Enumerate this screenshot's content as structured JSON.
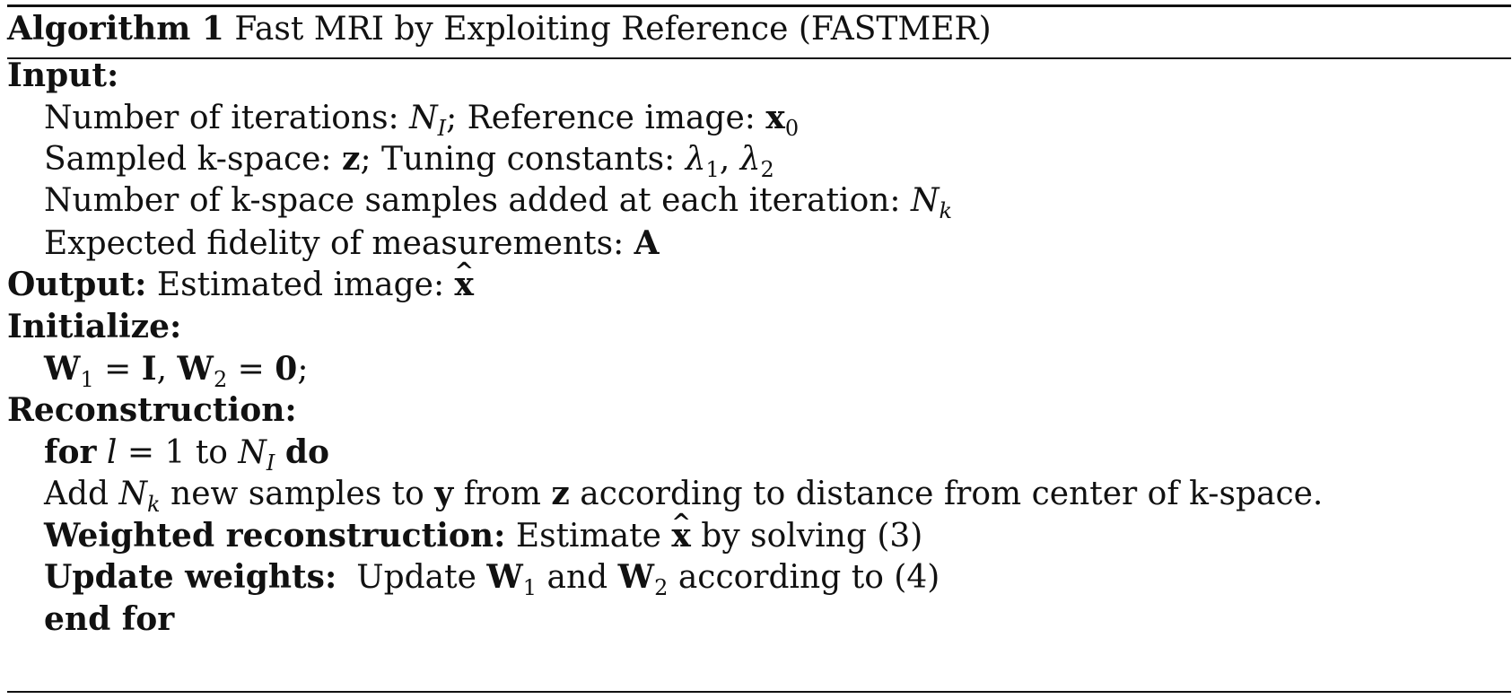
{
  "title": {
    "label": "Algorithm 1",
    "name": "Fast MRI by Exploiting Reference (FASTMER)"
  },
  "input": {
    "heading": "Input:",
    "line1": {
      "iterations_label": "Number of iterations: ",
      "iterations_symbol": "N",
      "iterations_sub": "I",
      "separator": "; ",
      "reference_label": "Reference image: ",
      "reference_symbol": "x",
      "reference_sub": "0"
    },
    "line2": {
      "sampled_label": "Sampled k-space: ",
      "sampled_symbol": "z",
      "separator": "; ",
      "tuning_label": "Tuning constants: ",
      "lambda_symbol": "λ",
      "lambda1_sub": "1",
      "comma": ", ",
      "lambda2_sub": "2"
    },
    "line3": {
      "label": "Number of k-space samples added at each iteration: ",
      "symbol": "N",
      "sub": "k"
    },
    "line4": {
      "label": "Expected fidelity of measurements: ",
      "symbol": "A"
    }
  },
  "output": {
    "heading": "Output:",
    "label": "Estimated image: ",
    "symbol": "x",
    "hat": "^"
  },
  "initialize": {
    "heading": "Initialize:",
    "w": "W",
    "w1_sub": "1",
    "eq1": " = ",
    "identity": "I",
    "comma": ", ",
    "w2_sub": "2",
    "eq2": " = ",
    "zero": "0",
    "semicolon": ";"
  },
  "reconstruction": {
    "heading": "Reconstruction:",
    "for_keyword": "for",
    "loop_var": "l",
    "loop_eq": " = 1 to ",
    "loop_bound_symbol": "N",
    "loop_bound_sub": "I",
    "do_keyword": "do",
    "add": {
      "prefix": "Add ",
      "symbol": "N",
      "sub": "k",
      "middle": " new samples to ",
      "y_symbol": "y",
      "from": " from ",
      "z_symbol": "z",
      "suffix": " according to distance from center of k-space."
    },
    "weighted": {
      "label": "Weighted reconstruction:",
      "prefix": "Estimate ",
      "symbol": "x",
      "hat": "^",
      "suffix": " by solving (3)"
    },
    "update": {
      "label": "Update weights:",
      "prefix": "Update ",
      "w": "W",
      "w1_sub": "1",
      "and": " and ",
      "w2_sub": "2",
      "suffix": " according to (4)"
    },
    "end_for": "end for"
  }
}
